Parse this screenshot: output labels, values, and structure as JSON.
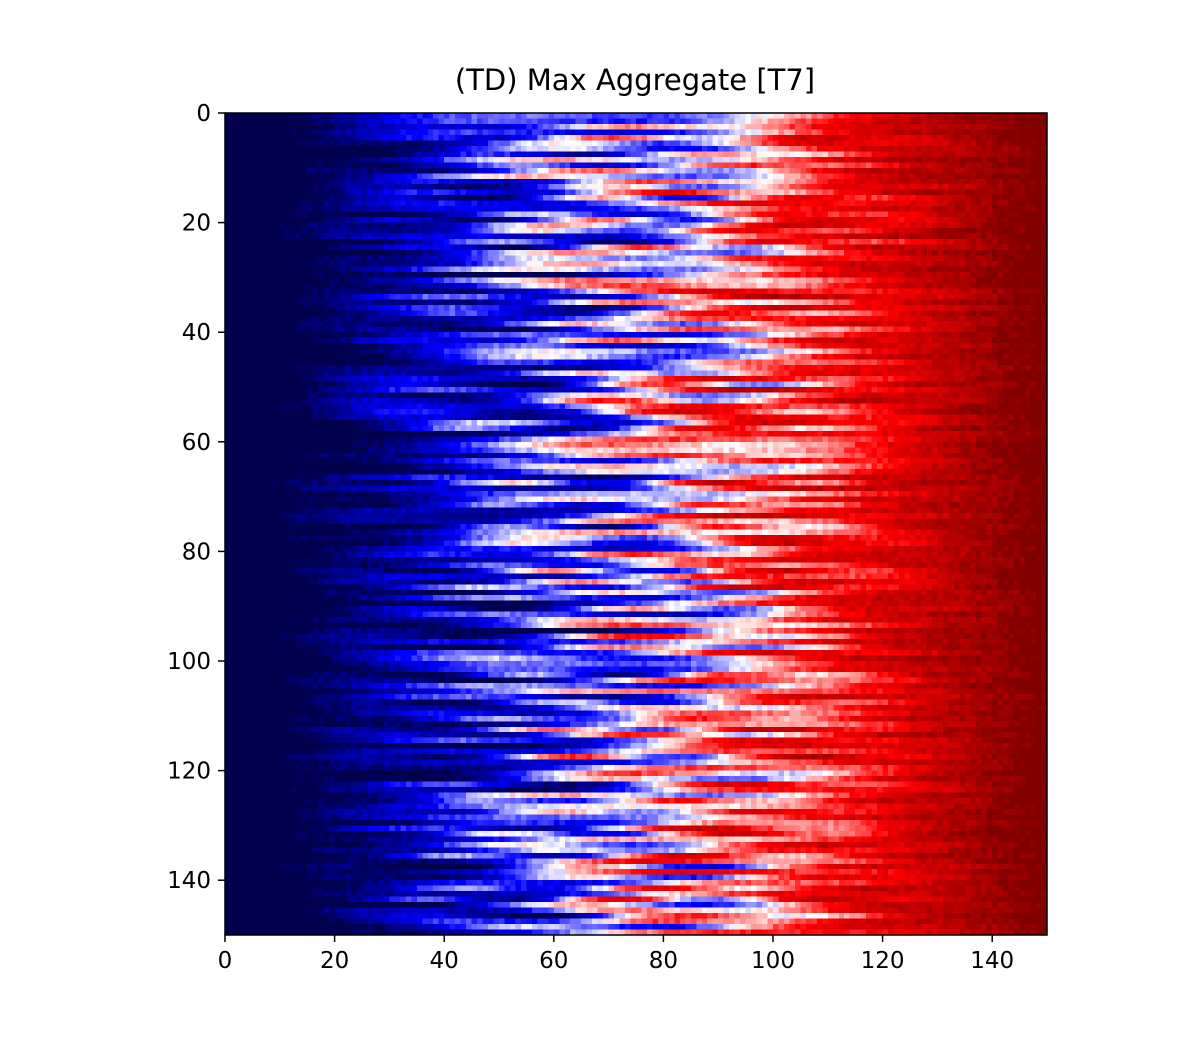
{
  "chart_data": {
    "type": "heatmap",
    "title": "(TD) Max Aggregate [T7]",
    "xlabel": "",
    "ylabel": "",
    "x_range": [
      0,
      150
    ],
    "y_range": [
      0,
      150
    ],
    "y_axis_inverted": true,
    "x_ticks": [
      0,
      20,
      40,
      60,
      80,
      100,
      120,
      140
    ],
    "y_ticks": [
      0,
      20,
      40,
      60,
      80,
      100,
      120,
      140
    ],
    "colormap": "seismic",
    "colors": {
      "low": "#00004c",
      "mid_low": "#0000ff",
      "mid": "#ffffff",
      "mid_high": "#ff0000",
      "high": "#800000"
    },
    "value_range": [
      0,
      1
    ],
    "grid": false,
    "legend": "none",
    "trend": "values rise from dark blue on the left (columns 0-10) through blue and white near columns 40-90 to dark red on the right (columns 100-150), with wavy horizontal streaks"
  }
}
